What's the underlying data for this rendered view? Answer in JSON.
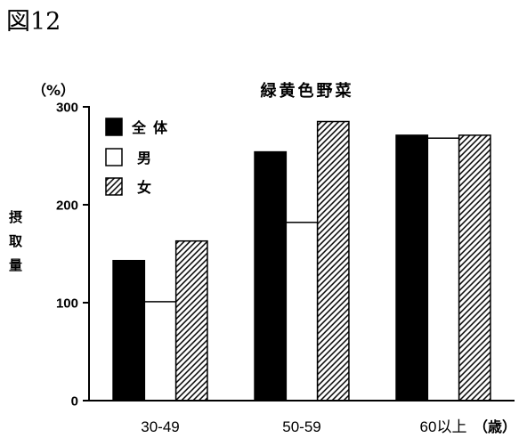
{
  "figure_label": "図12",
  "chart_data": {
    "type": "bar",
    "title": "緑黄色野菜",
    "ylabel": "摂取量",
    "yunit": "（%）",
    "xunit": "（歳）",
    "categories": [
      "30-49",
      "50-59",
      "60以上"
    ],
    "series": [
      {
        "name": "全体",
        "values": [
          143,
          254,
          271
        ],
        "fill": "#000000"
      },
      {
        "name": "男",
        "values": [
          101,
          182,
          268
        ],
        "fill": "#ffffff"
      },
      {
        "name": "女",
        "values": [
          163,
          285,
          271
        ],
        "fill": "#ffffff",
        "pattern": "diagonal-hatch"
      }
    ],
    "ylim": [
      0,
      300
    ],
    "yticks": [
      0,
      100,
      200,
      300
    ],
    "legend": "top-left",
    "grid": false,
    "colors": {
      "stroke": "#000000",
      "hatch": "#000000",
      "background": "#ffffff"
    }
  }
}
